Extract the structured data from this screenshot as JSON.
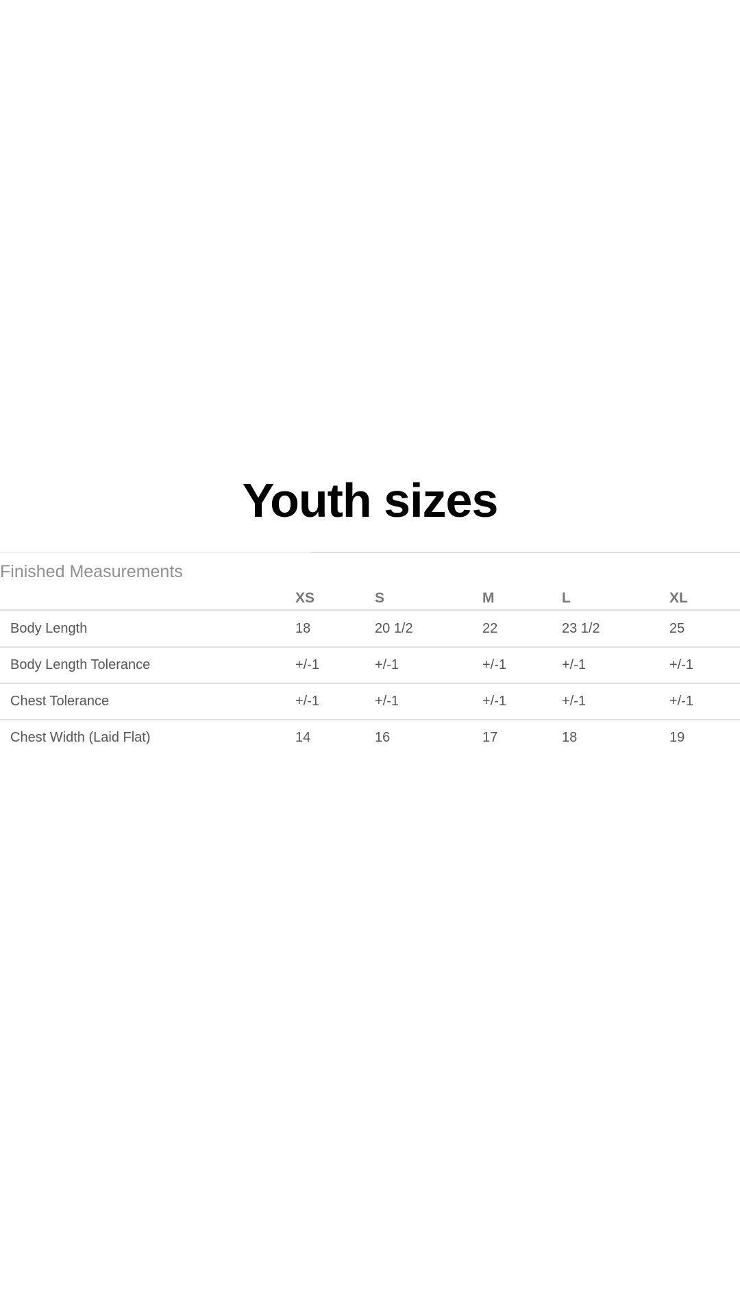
{
  "title": "Youth sizes",
  "table": {
    "caption": "Finished Measurements",
    "columns": [
      "XS",
      "S",
      "M",
      "L",
      "XL"
    ],
    "rows": [
      {
        "label": "Body Length",
        "values": [
          "18",
          "20 1/2",
          "22",
          "23 1/2",
          "25"
        ]
      },
      {
        "label": "Body Length Tolerance",
        "values": [
          "+/-1",
          "+/-1",
          "+/-1",
          "+/-1",
          "+/-1"
        ]
      },
      {
        "label": "Chest Tolerance",
        "values": [
          "+/-1",
          "+/-1",
          "+/-1",
          "+/-1",
          "+/-1"
        ]
      },
      {
        "label": "Chest Width (Laid Flat)",
        "values": [
          "14",
          "16",
          "17",
          "18",
          "19"
        ]
      }
    ]
  }
}
